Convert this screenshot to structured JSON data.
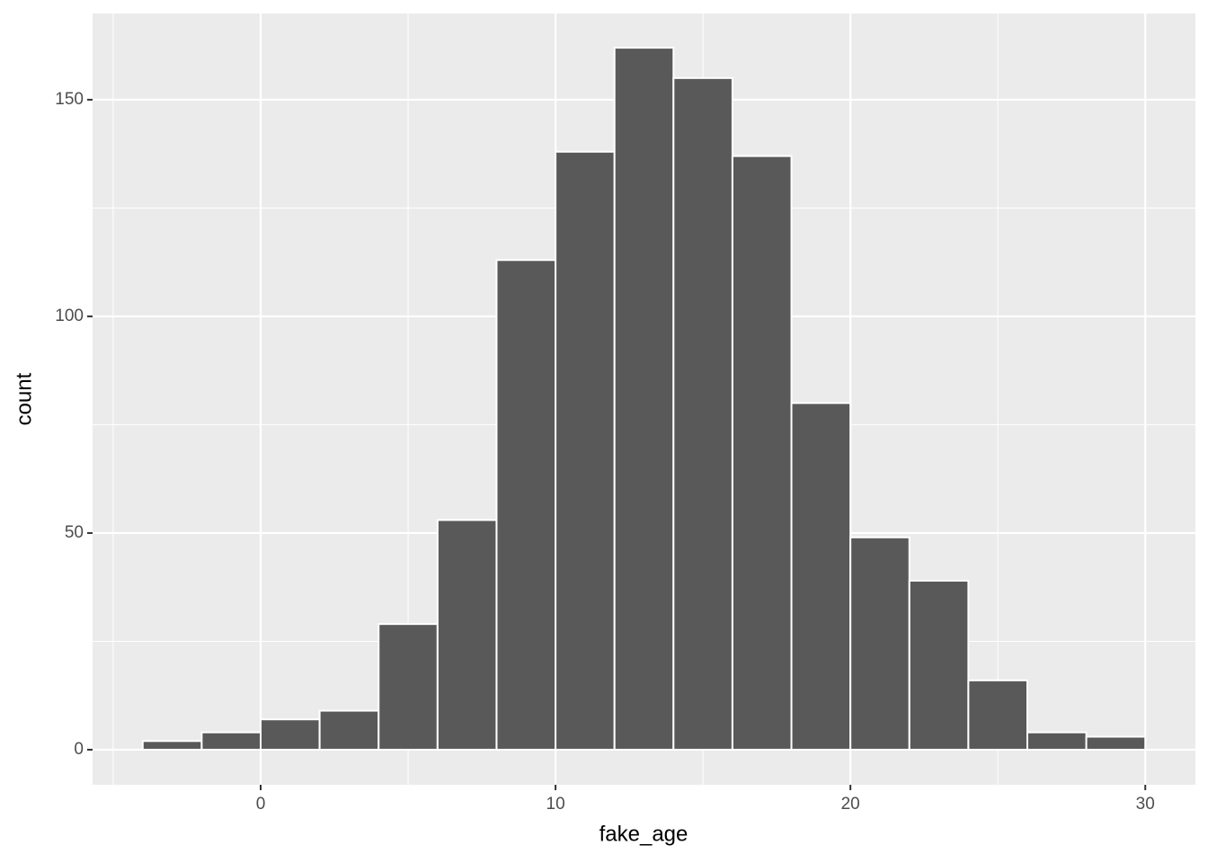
{
  "chart_data": {
    "type": "histogram",
    "x_label": "fake_age",
    "y_label": "count",
    "bins": [
      -4,
      -2,
      0,
      2,
      4,
      6,
      8,
      10,
      12,
      14,
      16,
      18,
      20,
      22,
      24,
      26,
      28,
      30
    ],
    "values": [
      2,
      4,
      7,
      9,
      29,
      53,
      113,
      138,
      162,
      155,
      137,
      80,
      49,
      39,
      16,
      4,
      3
    ],
    "color": "#595959",
    "edge_color": "#ffffff",
    "xlim": [
      -5.7,
      31.7
    ],
    "xticks": [
      0,
      10,
      20,
      30
    ],
    "minor_xticks": [
      -5,
      5,
      15,
      25
    ],
    "ylim": [
      -8.1,
      169.9
    ],
    "yticks": [
      0,
      50,
      100,
      150
    ],
    "minor_yticks": [
      25,
      75,
      125
    ],
    "grid": true
  }
}
